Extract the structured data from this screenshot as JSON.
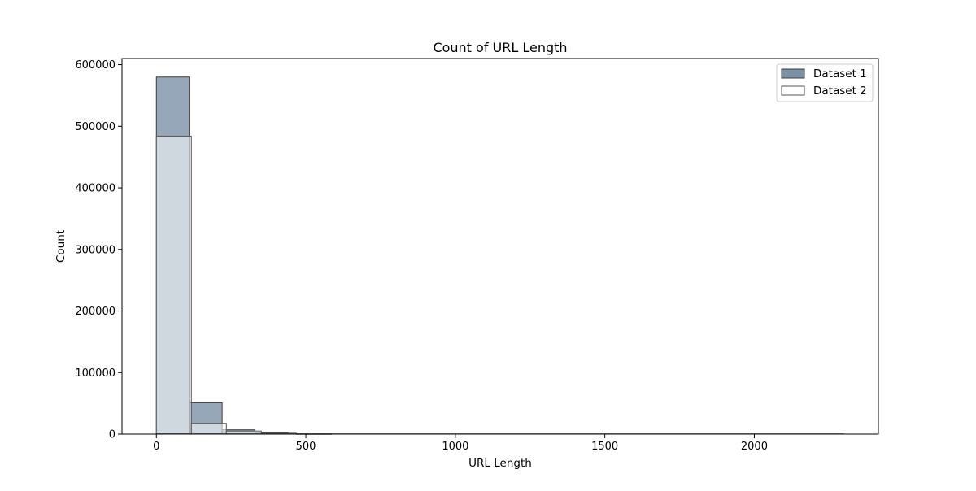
{
  "chart_data": {
    "type": "bar",
    "title": "Count of URL Length",
    "xlabel": "URL Length",
    "ylabel": "Count",
    "xlim": [
      -115,
      2415
    ],
    "ylim": [
      0,
      610000
    ],
    "x_ticks": [
      0,
      500,
      1000,
      1500,
      2000
    ],
    "y_ticks": [
      0,
      100000,
      200000,
      300000,
      400000,
      500000,
      600000
    ],
    "grid": false,
    "legend_position": "upper right",
    "colors": {
      "dataset1_fill": "#7a91a6",
      "dataset1_edge": "#3d3d3d",
      "dataset2_fill": "#ffffff",
      "dataset2_edge": "#555555"
    },
    "series": [
      {
        "name": "Dataset 1",
        "bin_edges": [
          0,
          110,
          220,
          330,
          440
        ],
        "values": [
          580000,
          51000,
          7000,
          2500
        ]
      },
      {
        "name": "Dataset 2",
        "bin_edges": [
          0,
          117,
          234,
          351,
          468,
          585,
          2300
        ],
        "values": [
          484000,
          17500,
          5000,
          1500,
          300,
          0
        ]
      }
    ]
  }
}
